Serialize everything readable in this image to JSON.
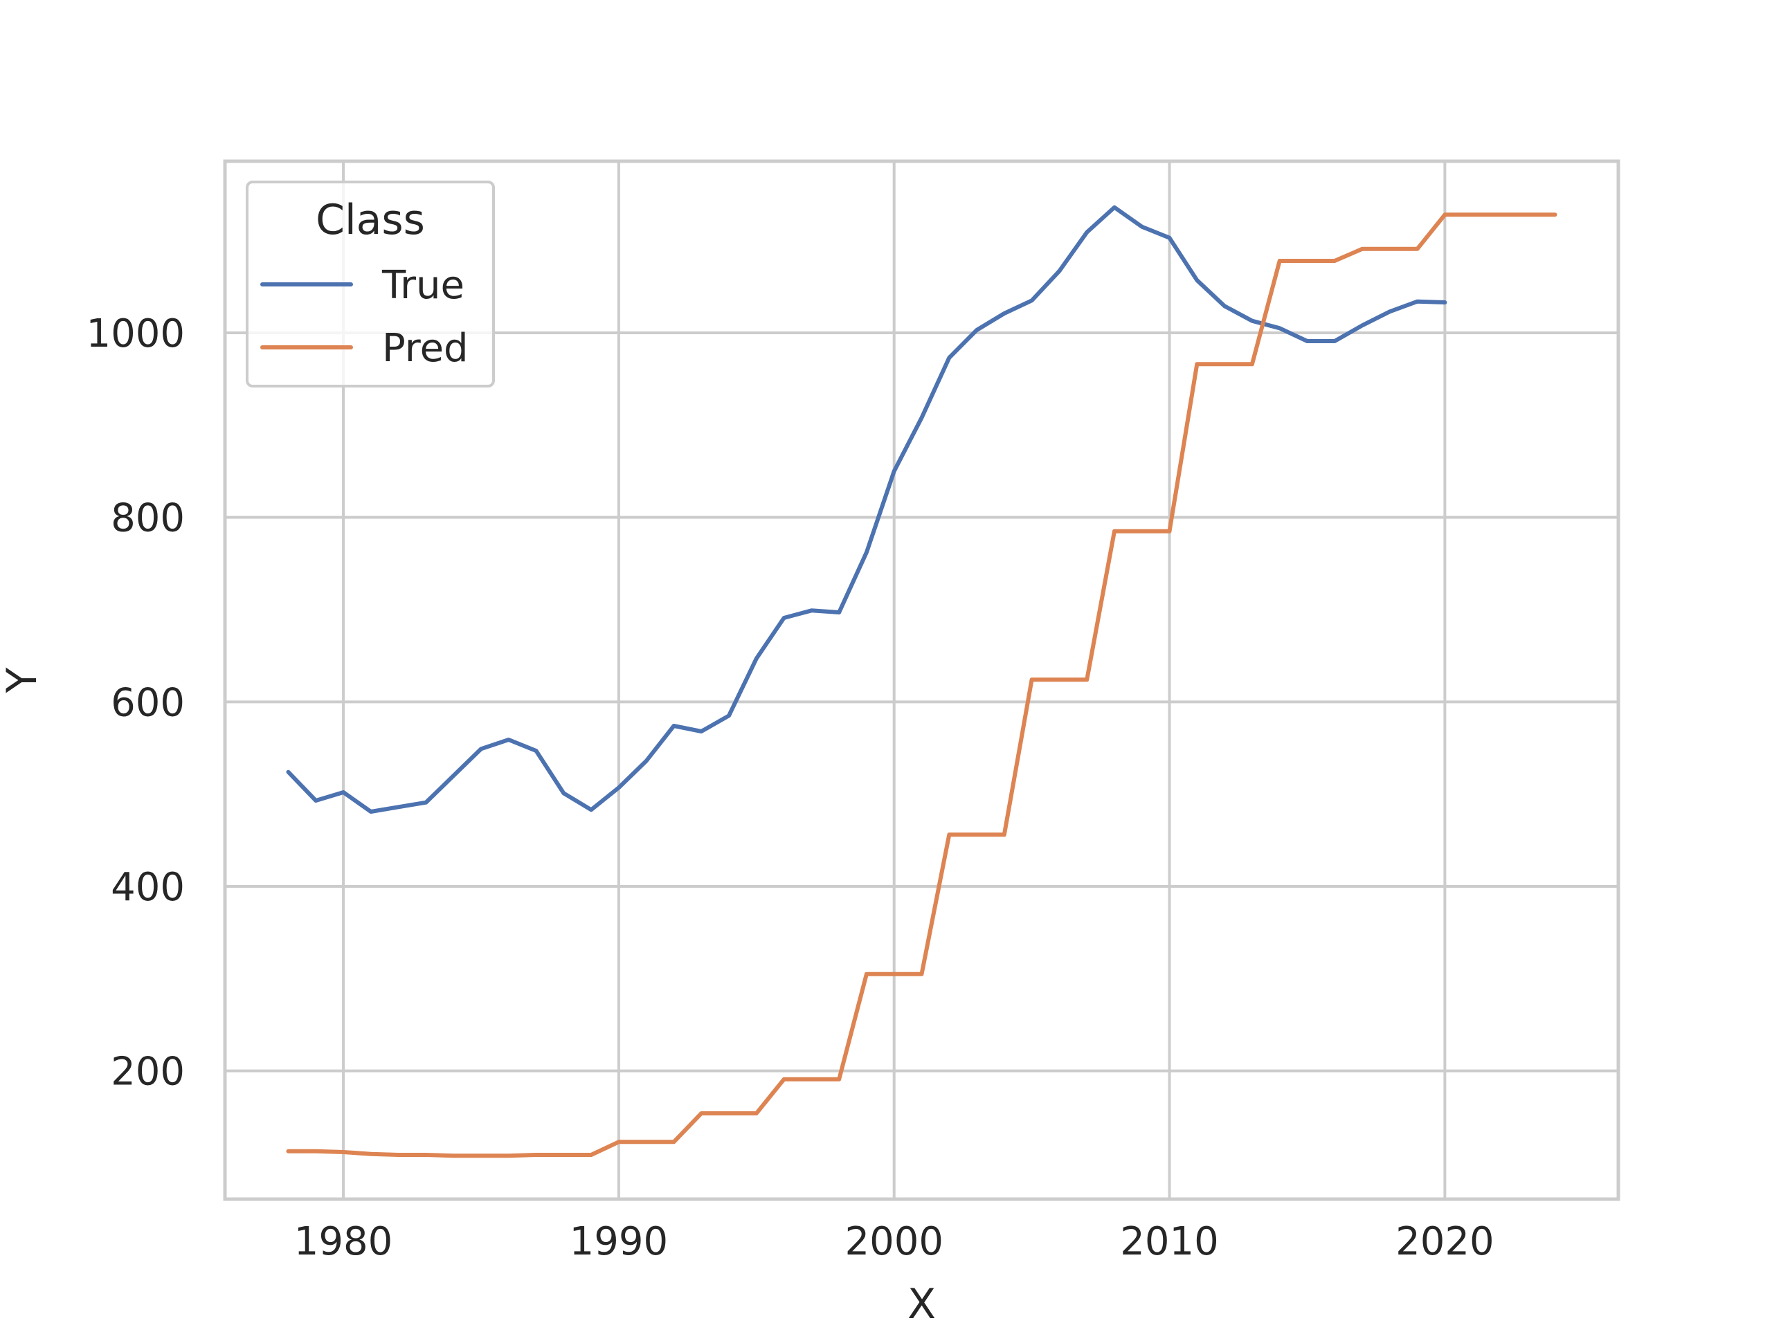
{
  "chart_data": {
    "type": "line",
    "title": "",
    "xlabel": "X",
    "ylabel": "Y",
    "xlim": [
      1975.7,
      2026.3
    ],
    "ylim": [
      61,
      1186
    ],
    "x_ticks": [
      1980,
      1990,
      2000,
      2010,
      2020
    ],
    "y_ticks": [
      200,
      400,
      600,
      800,
      1000
    ],
    "grid": true,
    "legend": {
      "title": "Class",
      "position": "top-left"
    },
    "series": [
      {
        "name": "True",
        "color": "#4c72b0",
        "x": [
          1978,
          1979,
          1980,
          1981,
          1982,
          1983,
          1984,
          1985,
          1986,
          1987,
          1988,
          1989,
          1990,
          1991,
          1992,
          1993,
          1994,
          1995,
          1996,
          1997,
          1998,
          1999,
          2000,
          2001,
          2002,
          2003,
          2004,
          2005,
          2006,
          2007,
          2008,
          2009,
          2010,
          2011,
          2012,
          2013,
          2014,
          2015,
          2016,
          2017,
          2018,
          2019,
          2020
        ],
        "values": [
          524,
          493,
          502,
          481,
          486,
          491,
          520,
          549,
          559,
          547,
          501,
          483,
          507,
          536,
          574,
          568,
          585,
          647,
          691,
          699,
          697,
          762,
          850,
          908,
          973,
          1003,
          1021,
          1035,
          1067,
          1109,
          1136,
          1115,
          1103,
          1057,
          1029,
          1013,
          1005,
          991,
          991,
          1008,
          1023,
          1034,
          1033
        ]
      },
      {
        "name": "Pred",
        "color": "#dd8452",
        "x": [
          1978,
          1979,
          1980,
          1981,
          1982,
          1983,
          1984,
          1985,
          1986,
          1987,
          1988,
          1989,
          1990,
          1991,
          1992,
          1993,
          1994,
          1995,
          1996,
          1997,
          1998,
          1999,
          2000,
          2001,
          2002,
          2003,
          2004,
          2005,
          2006,
          2007,
          2008,
          2009,
          2010,
          2011,
          2012,
          2013,
          2014,
          2015,
          2016,
          2017,
          2018,
          2019,
          2020,
          2021,
          2022,
          2023,
          2024
        ],
        "values": [
          113,
          113,
          112,
          110,
          109,
          109,
          108,
          108,
          108,
          109,
          109,
          109,
          123,
          123,
          123,
          154,
          154,
          154,
          191,
          191,
          191,
          305,
          305,
          305,
          456,
          456,
          456,
          624,
          624,
          624,
          785,
          785,
          785,
          966,
          966,
          966,
          1078,
          1078,
          1078,
          1091,
          1091,
          1091,
          1128,
          1128,
          1128,
          1128,
          1128
        ]
      }
    ]
  }
}
